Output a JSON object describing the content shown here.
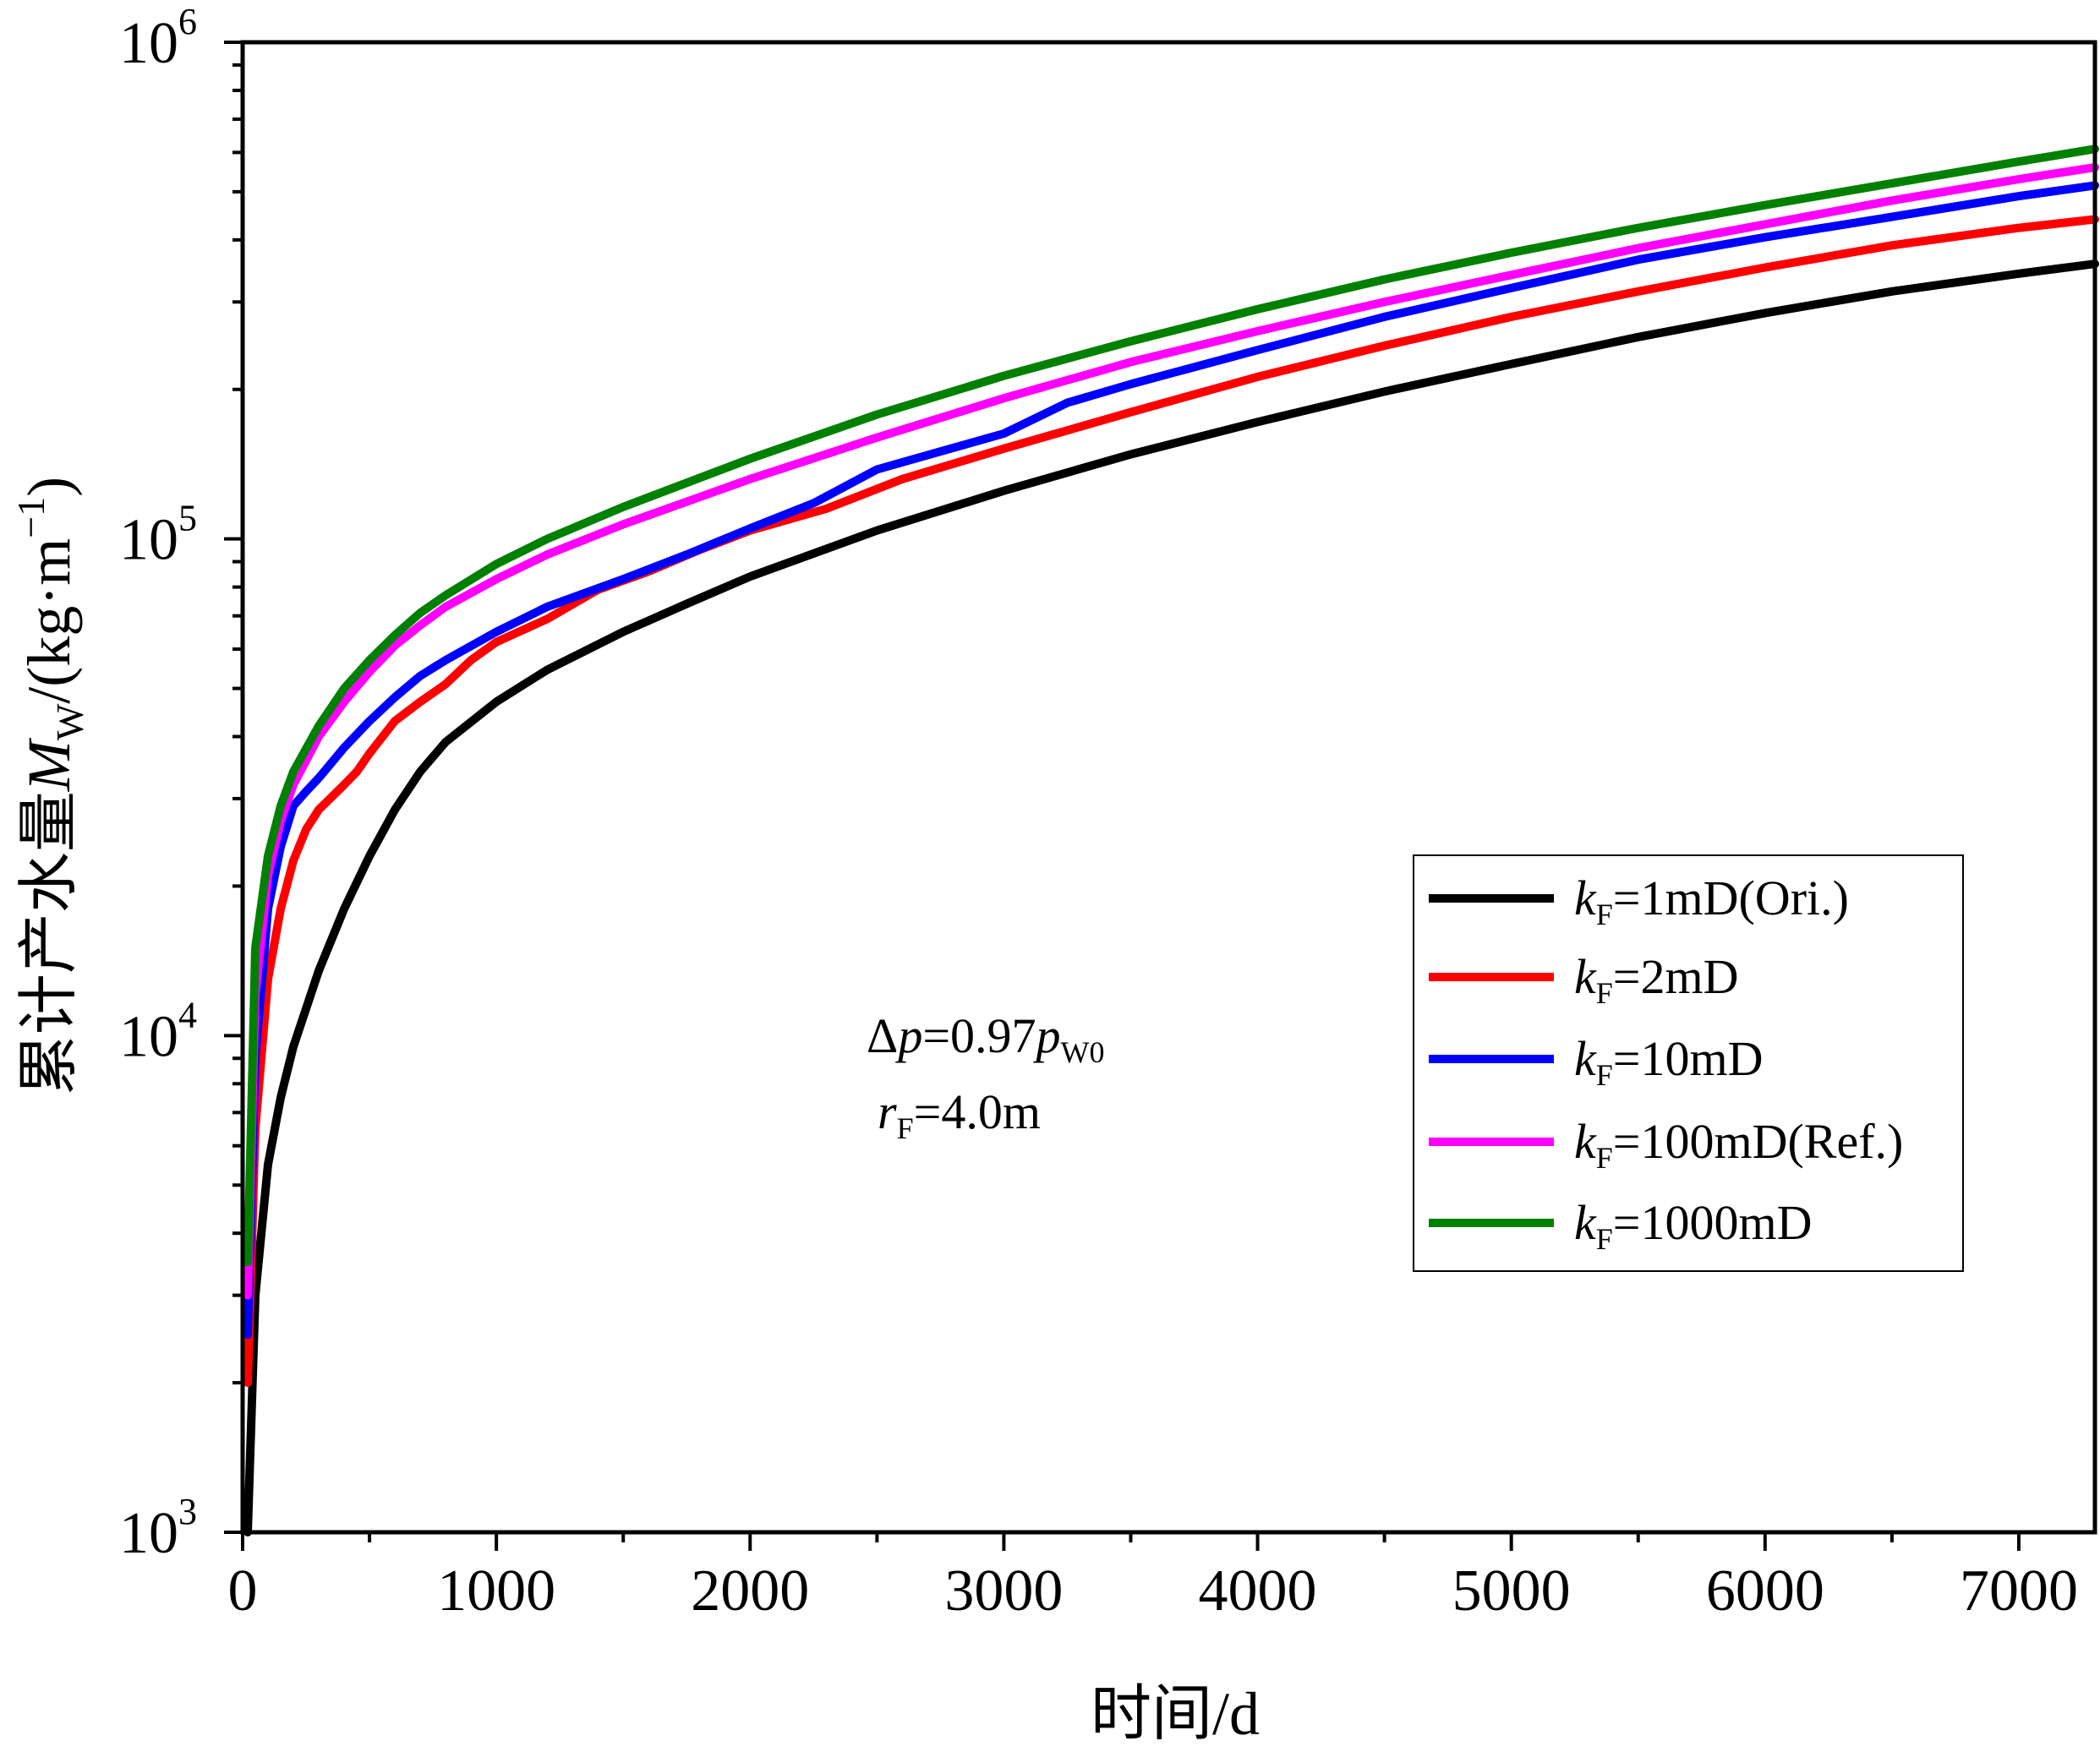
{
  "chart_data": {
    "type": "line",
    "title": "",
    "xlabel": "时间/d",
    "ylabel": {
      "prefix": "累计产水量",
      "var": "M",
      "sub": "W",
      "unit_open": "/(kg·m",
      "unit_sup": "−1",
      "unit_close": ")"
    },
    "xlim": [
      0,
      7300
    ],
    "ylim": [
      1000,
      1000000
    ],
    "yscale": "log",
    "x_ticks": [
      "0",
      "1000",
      "2000",
      "3000",
      "4000",
      "5000",
      "6000",
      "7000"
    ],
    "y_ticks": [
      {
        "value": 1000,
        "base": "10",
        "exp": "3"
      },
      {
        "value": 10000,
        "base": "10",
        "exp": "4"
      },
      {
        "value": 100000,
        "base": "10",
        "exp": "5"
      },
      {
        "value": 1000000,
        "base": "10",
        "exp": "6"
      }
    ],
    "grid": false,
    "legend_position": "right-middle",
    "annotations": [
      {
        "sym": "Δ",
        "var": "p",
        "mid": "=0.97",
        "var2": "p",
        "sub": "W0"
      },
      {
        "var": "r",
        "sub": "F",
        "rest": "=4.0m"
      }
    ],
    "series": [
      {
        "name": {
          "var": "k",
          "sub": "F",
          "rest": "=1mD(Ori.)"
        },
        "color": "#000000",
        "x": [
          20,
          50,
          100,
          150,
          200,
          300,
          400,
          500,
          600,
          700,
          800,
          1000,
          1200,
          1500,
          1750,
          2000,
          2500,
          3000,
          3500,
          4000,
          4500,
          5000,
          5500,
          6000,
          6500,
          7000,
          7300
        ],
        "y": [
          1000,
          3000,
          5500,
          7500,
          9500,
          13500,
          18000,
          23000,
          28500,
          34000,
          39000,
          47000,
          54500,
          65000,
          74000,
          84000,
          104000,
          125000,
          148000,
          172000,
          198000,
          225000,
          255000,
          285000,
          315000,
          342000,
          358000
        ]
      },
      {
        "name": {
          "var": "k",
          "sub": "F",
          "rest": "=2mD"
        },
        "color": "#ff0000",
        "x": [
          20,
          50,
          100,
          150,
          200,
          250,
          300,
          400,
          450,
          500,
          600,
          700,
          800,
          900,
          1000,
          1200,
          1400,
          1600,
          1800,
          2000,
          2300,
          2600,
          3000,
          3500,
          4000,
          4500,
          5000,
          5500,
          6000,
          6500,
          7000,
          7300
        ],
        "y": [
          2000,
          6500,
          13000,
          18000,
          22500,
          26000,
          28500,
          32000,
          34000,
          37000,
          43000,
          47000,
          51000,
          57000,
          62000,
          69000,
          79000,
          86000,
          95000,
          104000,
          115000,
          132000,
          152000,
          180000,
          212000,
          245000,
          280000,
          315000,
          352000,
          390000,
          423000,
          440000
        ]
      },
      {
        "name": {
          "var": "k",
          "sub": "F",
          "rest": "=10mD"
        },
        "color": "#0000ff",
        "x": [
          20,
          50,
          100,
          150,
          200,
          250,
          300,
          400,
          500,
          600,
          700,
          800,
          1000,
          1200,
          1500,
          1750,
          2000,
          2250,
          2500,
          2750,
          3000,
          3250,
          3500,
          4000,
          4500,
          5000,
          5500,
          6000,
          6500,
          7000,
          7300
        ],
        "y": [
          2500,
          9000,
          18000,
          24000,
          29000,
          31000,
          33000,
          38000,
          43000,
          48000,
          53000,
          57000,
          65000,
          73000,
          83000,
          93000,
          105000,
          118000,
          138000,
          150000,
          163000,
          188000,
          205000,
          240000,
          280000,
          320000,
          365000,
          405000,
          445000,
          490000,
          515000
        ]
      },
      {
        "name": {
          "var": "k",
          "sub": "F",
          "rest": "=100mD(Ref.)"
        },
        "color": "#ff00ff",
        "x": [
          20,
          50,
          100,
          150,
          200,
          300,
          400,
          500,
          600,
          700,
          800,
          1000,
          1200,
          1500,
          2000,
          2500,
          3000,
          3500,
          4000,
          4500,
          5000,
          5500,
          6000,
          6500,
          7000,
          7300
        ],
        "y": [
          3000,
          12000,
          21000,
          27000,
          32000,
          40000,
          47000,
          54000,
          61000,
          67000,
          73000,
          83000,
          93000,
          107000,
          132000,
          160000,
          192000,
          227000,
          262000,
          300000,
          340000,
          385000,
          430000,
          480000,
          530000,
          560000
        ]
      },
      {
        "name": {
          "var": "k",
          "sub": "F",
          "rest": "=1000mD"
        },
        "color": "#008000",
        "x": [
          20,
          50,
          100,
          150,
          200,
          300,
          400,
          500,
          600,
          700,
          800,
          1000,
          1200,
          1500,
          2000,
          2500,
          3000,
          3500,
          4000,
          4500,
          5000,
          5500,
          6000,
          6500,
          7000,
          7300
        ],
        "y": [
          3500,
          15000,
          23000,
          29000,
          34000,
          42000,
          50000,
          57000,
          64000,
          71000,
          77000,
          89000,
          100000,
          116000,
          145000,
          178000,
          213000,
          250000,
          290000,
          333000,
          377000,
          423000,
          470000,
          520000,
          575000,
          610000
        ]
      }
    ]
  }
}
